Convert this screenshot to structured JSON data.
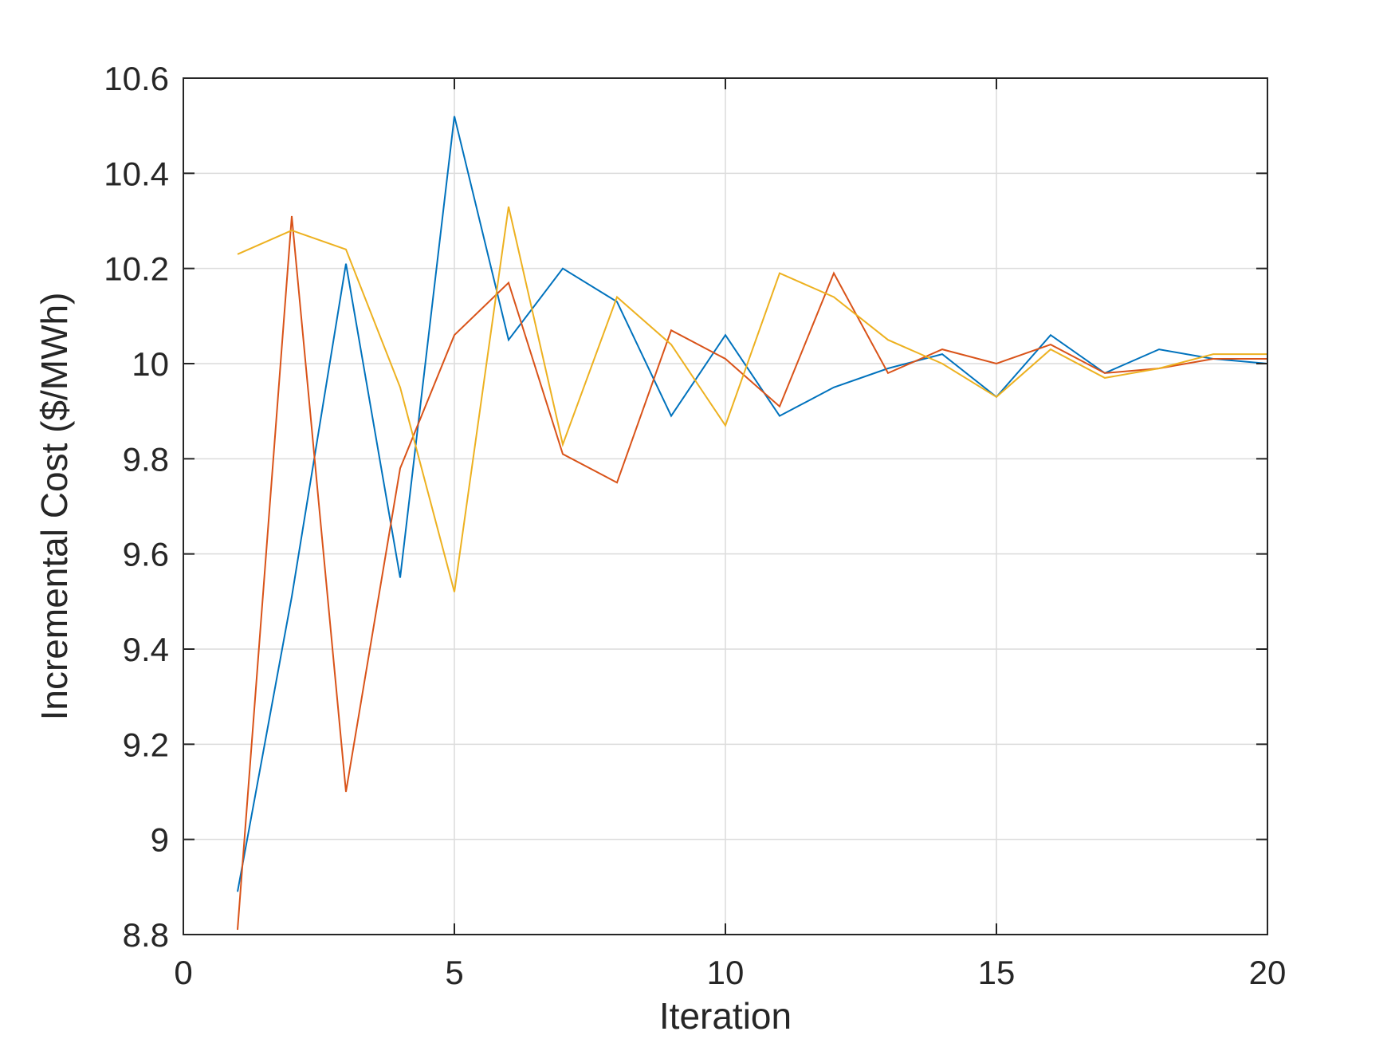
{
  "chart_data": {
    "type": "line",
    "title": "",
    "xlabel": "Iteration",
    "ylabel": "Incremental Cost ($/MWh)",
    "xlim": [
      0,
      20
    ],
    "ylim": [
      8.8,
      10.6
    ],
    "xticks": [
      0,
      5,
      10,
      15,
      20
    ],
    "xtick_labels": [
      "0",
      "5",
      "10",
      "15",
      "20"
    ],
    "yticks": [
      8.8,
      9,
      9.2,
      9.4,
      9.6,
      9.8,
      10,
      10.2,
      10.4,
      10.6
    ],
    "ytick_labels": [
      "8.8",
      "9",
      "9.2",
      "9.4",
      "9.6",
      "9.8",
      "10",
      "10.2",
      "10.4",
      "10.6"
    ],
    "grid": true,
    "legend": "none",
    "x": [
      1,
      2,
      3,
      4,
      5,
      6,
      7,
      8,
      9,
      10,
      11,
      12,
      13,
      14,
      15,
      16,
      17,
      18,
      19,
      20
    ],
    "series": [
      {
        "color": "#0072BD",
        "values": [
          8.89,
          9.51,
          10.21,
          9.55,
          10.52,
          10.05,
          10.2,
          10.13,
          9.89,
          10.06,
          9.89,
          9.95,
          9.99,
          10.02,
          9.93,
          10.06,
          9.98,
          10.03,
          10.01,
          10.0
        ]
      },
      {
        "color": "#D95319",
        "values": [
          8.81,
          10.31,
          9.1,
          9.78,
          10.06,
          10.17,
          9.81,
          9.75,
          10.07,
          10.01,
          9.91,
          10.19,
          9.98,
          10.03,
          10.0,
          10.04,
          9.98,
          9.99,
          10.01,
          10.01
        ]
      },
      {
        "color": "#EDB120",
        "values": [
          10.23,
          10.28,
          10.24,
          9.95,
          9.52,
          10.33,
          9.83,
          10.14,
          10.04,
          9.87,
          10.19,
          10.14,
          10.05,
          10.0,
          9.93,
          10.03,
          9.97,
          9.99,
          10.02,
          10.02
        ]
      }
    ]
  }
}
